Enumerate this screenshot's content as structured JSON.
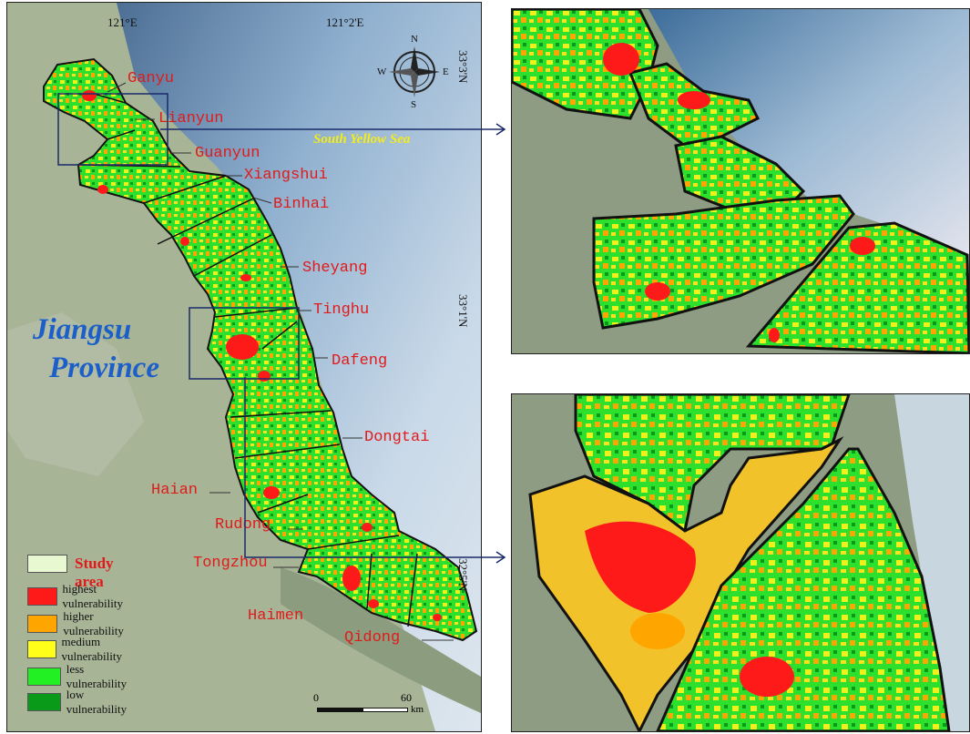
{
  "main_map": {
    "region_name_line1": "Jiangsu",
    "region_name_line2": "Province",
    "sea_name": "South Yellow Sea",
    "longitude_labels": [
      "121°E",
      "121°2'E"
    ],
    "latitude_labels": [
      "33°3'N",
      "33°1'N",
      "32°5'N"
    ],
    "compass": {
      "n": "N",
      "s": "S",
      "e": "E",
      "w": "W"
    },
    "districts": [
      "Ganyu",
      "Lianyun",
      "Guanyun",
      "Xiangshui",
      "Binhai",
      "Sheyang",
      "Tinghu",
      "Dafeng",
      "Dongtai",
      "Haian",
      "Rudong",
      "Tongzhou",
      "Haimen",
      "Qidong"
    ],
    "scale": {
      "zero": "0",
      "value": "60",
      "unit": "km"
    }
  },
  "legend": {
    "title": "Study area",
    "items": [
      {
        "label": "highest vulnerability",
        "color": "#ff1a1a"
      },
      {
        "label": "higher vulnerability",
        "color": "#ffa500"
      },
      {
        "label": "medium vulnerability",
        "color": "#ffff1a"
      },
      {
        "label": "less vulnerability",
        "color": "#22f022"
      },
      {
        "label": "low vulnerability",
        "color": "#0a9a1a"
      }
    ],
    "study_area_color": "#e8f8d0"
  },
  "colors": {
    "land": "#9aa88a",
    "sea": "#c5d6e6",
    "deep_sea": "#6a8aaa",
    "boundary": "#111111",
    "label": "#e11a1a"
  }
}
